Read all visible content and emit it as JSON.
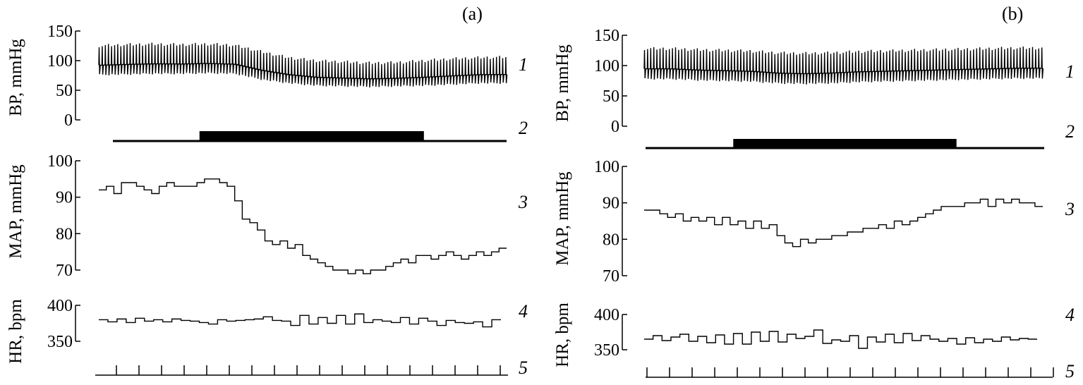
{
  "chart_data": [
    {
      "type": "line",
      "panel_label": "(a)",
      "axis_titles": {
        "bp": "BP, mmHg",
        "map": "MAP, mmHg",
        "hr": "HR, bpm"
      },
      "trace_labels": [
        "1",
        "2",
        "3",
        "4",
        "5"
      ],
      "bp": {
        "ticks": [
          "150",
          "100",
          "50",
          "0"
        ],
        "tick_values": [
          150,
          100,
          50,
          0
        ],
        "ylim": [
          0,
          150
        ],
        "systolic": [
          125,
          127,
          128,
          127,
          128,
          126,
          115,
          105,
          100,
          98,
          96,
          97,
          100,
          103,
          105,
          106
        ],
        "diastolic": [
          76,
          77,
          78,
          78,
          79,
          78,
          68,
          62,
          58,
          57,
          56,
          57,
          58,
          60,
          62,
          62
        ]
      },
      "stimulus_on_fraction": [
        0.22,
        0.79
      ],
      "map": {
        "ticks": [
          "100",
          "90",
          "80",
          "70"
        ],
        "tick_values": [
          100,
          90,
          80,
          70
        ],
        "ylim": [
          70,
          100
        ],
        "values": [
          92,
          93,
          91,
          94,
          94,
          93,
          92,
          91,
          93,
          94,
          93,
          93,
          93,
          94,
          95,
          95,
          94,
          93,
          89,
          84,
          83,
          81,
          78,
          77,
          78,
          76,
          77,
          74,
          73,
          72,
          71,
          70,
          70,
          69,
          70,
          69,
          70,
          70,
          71,
          72,
          73,
          72,
          74,
          74,
          73,
          74,
          75,
          74,
          73,
          74,
          75,
          74,
          75,
          76
        ]
      },
      "hr": {
        "ticks": [
          "400",
          "350"
        ],
        "tick_values": [
          400,
          350
        ],
        "ylim": [
          350,
          400
        ],
        "values": [
          380,
          377,
          381,
          376,
          382,
          378,
          380,
          377,
          381,
          379,
          378,
          376,
          374,
          380,
          378,
          379,
          380,
          381,
          384,
          379,
          378,
          372,
          386,
          374,
          383,
          375,
          386,
          374,
          388,
          376,
          380,
          378,
          376,
          383,
          374,
          382,
          378,
          372,
          379,
          376,
          375,
          377,
          370,
          380
        ]
      },
      "time_ticks": 18
    },
    {
      "type": "line",
      "panel_label": "(b)",
      "axis_titles": {
        "bp": "BP, mmHg",
        "map": "MAP, mmHg",
        "hr": "HR, bpm"
      },
      "trace_labels": [
        "1",
        "2",
        "3",
        "4",
        "5"
      ],
      "bp": {
        "ticks": [
          "150",
          "100",
          "50",
          "0"
        ],
        "tick_values": [
          150,
          100,
          50,
          0
        ],
        "ylim": [
          0,
          150
        ],
        "systolic": [
          128,
          128,
          126,
          125,
          124,
          121,
          120,
          121,
          123,
          124,
          125,
          126,
          127,
          128,
          129,
          129
        ],
        "diastolic": [
          78,
          78,
          76,
          75,
          74,
          71,
          70,
          71,
          73,
          74,
          75,
          76,
          77,
          78,
          79,
          79
        ]
      },
      "stimulus_on_fraction": [
        0.22,
        0.78
      ],
      "map": {
        "ticks": [
          "100",
          "90",
          "80",
          "70"
        ],
        "tick_values": [
          100,
          90,
          80,
          70
        ],
        "ylim": [
          70,
          100
        ],
        "values": [
          88,
          88,
          87,
          86,
          87,
          85,
          86,
          85,
          86,
          84,
          86,
          84,
          85,
          83,
          85,
          83,
          84,
          81,
          79,
          78,
          80,
          79,
          80,
          80,
          81,
          81,
          82,
          82,
          83,
          83,
          84,
          83,
          85,
          84,
          85,
          86,
          87,
          88,
          89,
          89,
          89,
          90,
          90,
          91,
          89,
          91,
          90,
          91,
          90,
          90,
          89
        ]
      },
      "hr": {
        "ticks": [
          "400",
          "350"
        ],
        "tick_values": [
          400,
          350
        ],
        "ylim": [
          350,
          400
        ],
        "values": [
          365,
          370,
          363,
          368,
          372,
          362,
          369,
          360,
          371,
          358,
          373,
          358,
          375,
          362,
          376,
          361,
          372,
          366,
          369,
          378,
          359,
          364,
          362,
          370,
          352,
          368,
          361,
          372,
          360,
          373,
          363,
          370,
          365,
          362,
          366,
          358,
          367,
          360,
          365,
          362,
          368,
          364,
          366,
          365
        ]
      },
      "time_ticks": 19
    }
  ]
}
